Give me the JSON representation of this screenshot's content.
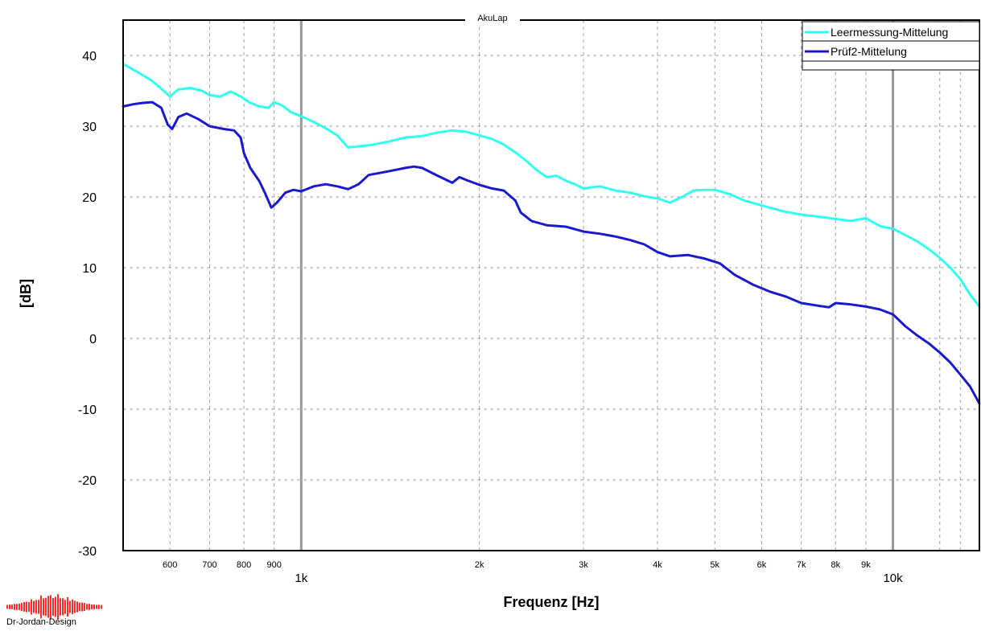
{
  "chart_data": {
    "type": "line",
    "title": "AkuLap",
    "xlabel": "Frequenz [Hz]",
    "ylabel": "[dB]",
    "xscale": "log",
    "xlim": [
      500,
      14000
    ],
    "ylim": [
      -30,
      45
    ],
    "grid": true,
    "legend": "top-right",
    "y_ticks": [
      "40",
      "30",
      "20",
      "10",
      "0",
      "-10",
      "-20",
      "-30"
    ],
    "x_ticks_minor": [
      {
        "value": 600,
        "label": "600"
      },
      {
        "value": 700,
        "label": "700"
      },
      {
        "value": 800,
        "label": "800"
      },
      {
        "value": 900,
        "label": "900"
      },
      {
        "value": 2000,
        "label": "2k"
      },
      {
        "value": 3000,
        "label": "3k"
      },
      {
        "value": 4000,
        "label": "4k"
      },
      {
        "value": 5000,
        "label": "5k"
      },
      {
        "value": 6000,
        "label": "6k"
      },
      {
        "value": 7000,
        "label": "7k"
      },
      {
        "value": 8000,
        "label": "8k"
      },
      {
        "value": 9000,
        "label": "9k"
      }
    ],
    "x_ticks_major": [
      {
        "value": 1000,
        "label": "1k"
      },
      {
        "value": 10000,
        "label": "10k"
      }
    ],
    "series": [
      {
        "name": "Leermessung-Mittelung",
        "color": "#33ffee",
        "points": [
          [
            500,
            38.8
          ],
          [
            520,
            38.0
          ],
          [
            540,
            37.2
          ],
          [
            560,
            36.4
          ],
          [
            580,
            35.3
          ],
          [
            600,
            34.2
          ],
          [
            620,
            35.2
          ],
          [
            650,
            35.4
          ],
          [
            680,
            35.0
          ],
          [
            700,
            34.4
          ],
          [
            730,
            34.2
          ],
          [
            760,
            34.9
          ],
          [
            790,
            34.2
          ],
          [
            820,
            33.3
          ],
          [
            850,
            32.8
          ],
          [
            880,
            32.6
          ],
          [
            900,
            33.4
          ],
          [
            930,
            32.9
          ],
          [
            960,
            32.0
          ],
          [
            1000,
            31.4
          ],
          [
            1050,
            30.6
          ],
          [
            1100,
            29.7
          ],
          [
            1150,
            28.7
          ],
          [
            1200,
            27.0
          ],
          [
            1300,
            27.3
          ],
          [
            1400,
            27.8
          ],
          [
            1500,
            28.4
          ],
          [
            1600,
            28.6
          ],
          [
            1700,
            29.1
          ],
          [
            1800,
            29.4
          ],
          [
            1900,
            29.2
          ],
          [
            2000,
            28.7
          ],
          [
            2100,
            28.2
          ],
          [
            2200,
            27.4
          ],
          [
            2300,
            26.3
          ],
          [
            2400,
            25.1
          ],
          [
            2500,
            23.8
          ],
          [
            2600,
            22.8
          ],
          [
            2700,
            23.0
          ],
          [
            2800,
            22.3
          ],
          [
            2900,
            21.8
          ],
          [
            3000,
            21.2
          ],
          [
            3200,
            21.5
          ],
          [
            3400,
            20.9
          ],
          [
            3600,
            20.6
          ],
          [
            3800,
            20.1
          ],
          [
            4000,
            19.8
          ],
          [
            4200,
            19.2
          ],
          [
            4400,
            20.0
          ],
          [
            4600,
            20.9
          ],
          [
            4800,
            21.0
          ],
          [
            5000,
            21.0
          ],
          [
            5300,
            20.4
          ],
          [
            5600,
            19.5
          ],
          [
            6000,
            18.8
          ],
          [
            6500,
            18.0
          ],
          [
            7000,
            17.5
          ],
          [
            7500,
            17.2
          ],
          [
            8000,
            16.9
          ],
          [
            8500,
            16.6
          ],
          [
            9000,
            17.0
          ],
          [
            9500,
            15.9
          ],
          [
            10000,
            15.5
          ],
          [
            10500,
            14.6
          ],
          [
            11000,
            13.7
          ],
          [
            11500,
            12.6
          ],
          [
            12000,
            11.4
          ],
          [
            12500,
            10.0
          ],
          [
            13000,
            8.4
          ],
          [
            13500,
            6.2
          ],
          [
            14000,
            4.5
          ]
        ]
      },
      {
        "name": "Prüf2-Mittelung",
        "color": "#1a1acc",
        "points": [
          [
            500,
            32.8
          ],
          [
            520,
            33.1
          ],
          [
            540,
            33.3
          ],
          [
            560,
            33.4
          ],
          [
            580,
            32.6
          ],
          [
            595,
            30.2
          ],
          [
            605,
            29.6
          ],
          [
            620,
            31.3
          ],
          [
            640,
            31.8
          ],
          [
            670,
            31.0
          ],
          [
            700,
            30.0
          ],
          [
            740,
            29.6
          ],
          [
            770,
            29.4
          ],
          [
            790,
            28.4
          ],
          [
            800,
            26.2
          ],
          [
            820,
            24.1
          ],
          [
            850,
            22.2
          ],
          [
            870,
            20.4
          ],
          [
            890,
            18.5
          ],
          [
            910,
            19.2
          ],
          [
            940,
            20.6
          ],
          [
            970,
            21.0
          ],
          [
            1000,
            20.8
          ],
          [
            1050,
            21.5
          ],
          [
            1100,
            21.8
          ],
          [
            1150,
            21.5
          ],
          [
            1200,
            21.1
          ],
          [
            1250,
            21.8
          ],
          [
            1300,
            23.1
          ],
          [
            1400,
            23.6
          ],
          [
            1500,
            24.1
          ],
          [
            1550,
            24.3
          ],
          [
            1600,
            24.1
          ],
          [
            1700,
            23.0
          ],
          [
            1800,
            22.0
          ],
          [
            1850,
            22.8
          ],
          [
            1900,
            22.4
          ],
          [
            2000,
            21.7
          ],
          [
            2100,
            21.2
          ],
          [
            2200,
            20.9
          ],
          [
            2300,
            19.5
          ],
          [
            2350,
            17.8
          ],
          [
            2450,
            16.6
          ],
          [
            2600,
            16.0
          ],
          [
            2800,
            15.8
          ],
          [
            3000,
            15.1
          ],
          [
            3200,
            14.8
          ],
          [
            3400,
            14.4
          ],
          [
            3600,
            13.9
          ],
          [
            3800,
            13.3
          ],
          [
            4000,
            12.2
          ],
          [
            4200,
            11.6
          ],
          [
            4500,
            11.8
          ],
          [
            4800,
            11.3
          ],
          [
            5100,
            10.6
          ],
          [
            5400,
            9.0
          ],
          [
            5800,
            7.6
          ],
          [
            6200,
            6.6
          ],
          [
            6600,
            5.9
          ],
          [
            7000,
            5.0
          ],
          [
            7500,
            4.6
          ],
          [
            7800,
            4.4
          ],
          [
            8000,
            5.0
          ],
          [
            8500,
            4.8
          ],
          [
            9000,
            4.5
          ],
          [
            9500,
            4.1
          ],
          [
            10000,
            3.4
          ],
          [
            10500,
            1.7
          ],
          [
            11000,
            0.4
          ],
          [
            11500,
            -0.7
          ],
          [
            12000,
            -2.0
          ],
          [
            12500,
            -3.4
          ],
          [
            13000,
            -5.1
          ],
          [
            13500,
            -6.8
          ],
          [
            14000,
            -9.2
          ]
        ]
      }
    ]
  },
  "logo": {
    "text": "Dr-Jordan-Design",
    "color": "#ff2a2a"
  }
}
